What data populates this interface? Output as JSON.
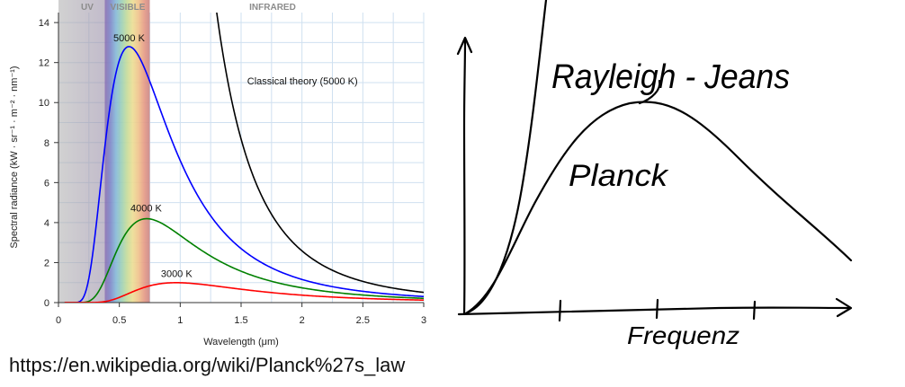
{
  "chart_data": [
    {
      "type": "line",
      "ylabel": "Spectral radiance (kW · sr⁻¹ · m⁻² · nm⁻¹)",
      "xlabel": "Wavelength (μm)",
      "xlim": [
        0,
        3
      ],
      "ylim": [
        0,
        14.5
      ],
      "x_ticks": [
        "0",
        "0.5",
        "1",
        "1.5",
        "2",
        "2.5",
        "3"
      ],
      "y_ticks": [
        "0",
        "2",
        "4",
        "6",
        "8",
        "10",
        "12",
        "14"
      ],
      "grid": true,
      "bands": [
        {
          "label": "UV",
          "from": 0,
          "to": 0.38
        },
        {
          "label": "VISIBLE",
          "from": 0.38,
          "to": 0.75
        },
        {
          "label": "INFRARED",
          "from": 0.75,
          "to": 3
        }
      ],
      "series": [
        {
          "name": "5000 K",
          "color": "#0000ff",
          "temperature_K": 5000,
          "peak": [
            0.58,
            12.7
          ]
        },
        {
          "name": "4000 K",
          "color": "#008000",
          "temperature_K": 4000,
          "peak": [
            0.72,
            4.2
          ]
        },
        {
          "name": "3000 K",
          "color": "#ff0000",
          "temperature_K": 3000,
          "peak": [
            0.97,
            1.0
          ]
        },
        {
          "name": "Classical theory (5000 K)",
          "color": "#000000",
          "temperature_K": 5000,
          "classical": true
        }
      ]
    },
    {
      "type": "line",
      "style": "hand-drawn sketch",
      "xlabel": "Frequenz",
      "series": [
        {
          "name": "Rayleigh - Jeans",
          "color": "#000000"
        },
        {
          "name": "Planck",
          "color": "#000000"
        }
      ]
    }
  ],
  "source_url": "https://en.wikipedia.org/wiki/Planck%27s_law"
}
